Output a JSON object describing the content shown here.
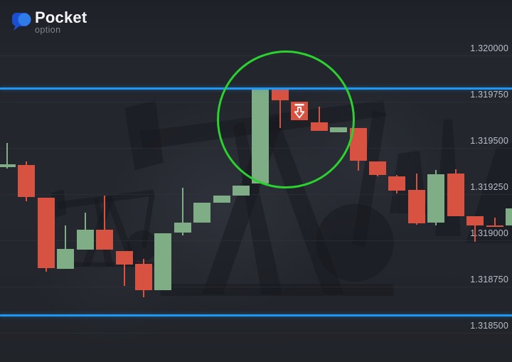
{
  "logo": {
    "brand": "Pocket",
    "sub": "option"
  },
  "colors": {
    "background": "#23262d",
    "bull": "#7fae86",
    "bear": "#d85242",
    "line_blue": "#2095f2",
    "circle_green": "#2bd12f",
    "grid": "#31343c",
    "axis_label": "#b9bfca",
    "marker_white": "#ffffff",
    "logo_dark_blue": "#1b4fd1",
    "logo_light_blue": "#2f7ce8",
    "silhouette": "#15181e"
  },
  "chart_data": {
    "type": "candlestick",
    "title": "",
    "y_axis": {
      "side": "right",
      "step": 0.00025,
      "levels": [
        1.32,
        1.31975,
        1.3195,
        1.31925,
        1.319,
        1.31875,
        1.3185
      ],
      "labels": [
        "1.320000",
        "1.319750",
        "1.319500",
        "1.319250",
        "1.319000",
        "1.318750",
        "1.318500"
      ]
    },
    "candles": [
      {
        "o": 1.319396,
        "h": 1.319527,
        "l": 1.319388,
        "c": 1.319412
      },
      {
        "o": 1.319408,
        "h": 1.319427,
        "l": 1.319212,
        "c": 1.319235
      },
      {
        "o": 1.319231,
        "h": 1.319231,
        "l": 1.318831,
        "c": 1.31885
      },
      {
        "o": 1.318846,
        "h": 1.319081,
        "l": 1.318846,
        "c": 1.318954
      },
      {
        "o": 1.31895,
        "h": 1.31915,
        "l": 1.31895,
        "c": 1.319058
      },
      {
        "o": 1.319058,
        "h": 1.319242,
        "l": 1.31895,
        "c": 1.31895
      },
      {
        "o": 1.318942,
        "h": 1.318942,
        "l": 1.318754,
        "c": 1.318869
      },
      {
        "o": 1.318873,
        "h": 1.3189,
        "l": 1.318692,
        "c": 1.318731
      },
      {
        "o": 1.318731,
        "h": 1.319038,
        "l": 1.318731,
        "c": 1.319038
      },
      {
        "o": 1.319042,
        "h": 1.319285,
        "l": 1.319027,
        "c": 1.319096
      },
      {
        "o": 1.319096,
        "h": 1.319204,
        "l": 1.319096,
        "c": 1.319204
      },
      {
        "o": 1.319204,
        "h": 1.319242,
        "l": 1.319204,
        "c": 1.319242
      },
      {
        "o": 1.319242,
        "h": 1.319296,
        "l": 1.319242,
        "c": 1.319296
      },
      {
        "o": 1.319308,
        "h": 1.319819,
        "l": 1.319308,
        "c": 1.319819
      },
      {
        "o": 1.319819,
        "h": 1.319819,
        "l": 1.319608,
        "c": 1.319758
      },
      {
        "o": 1.31975,
        "h": 1.31975,
        "l": 1.31965,
        "c": 1.31965
      },
      {
        "o": 1.319638,
        "h": 1.319723,
        "l": 1.319592,
        "c": 1.319592
      },
      {
        "o": 1.319585,
        "h": 1.319612,
        "l": 1.319585,
        "c": 1.319612
      },
      {
        "o": 1.319608,
        "h": 1.319608,
        "l": 1.319377,
        "c": 1.319431
      },
      {
        "o": 1.319427,
        "h": 1.319427,
        "l": 1.319346,
        "c": 1.319354
      },
      {
        "o": 1.319346,
        "h": 1.319354,
        "l": 1.319254,
        "c": 1.319269
      },
      {
        "o": 1.319273,
        "h": 1.319362,
        "l": 1.319085,
        "c": 1.319092
      },
      {
        "o": 1.319096,
        "h": 1.319381,
        "l": 1.319081,
        "c": 1.319358
      },
      {
        "o": 1.319362,
        "h": 1.319385,
        "l": 1.319131,
        "c": 1.319131
      },
      {
        "o": 1.319131,
        "h": 1.319131,
        "l": 1.318992,
        "c": 1.319081
      },
      {
        "o": 1.319081,
        "h": 1.319123,
        "l": 1.319073,
        "c": 1.319073
      },
      {
        "o": 1.319081,
        "h": 1.319173,
        "l": 1.319081,
        "c": 1.319173
      }
    ],
    "annotations": {
      "hlines": [
        {
          "name": "resistance-line",
          "price": 1.319821
        },
        {
          "name": "support-line",
          "price": 1.318594
        }
      ],
      "circle": {
        "center_index": 14.2,
        "center_price": 1.319665,
        "radius_px": 94
      },
      "arrow_marker": {
        "candle_index": 15,
        "direction": "down"
      }
    }
  }
}
